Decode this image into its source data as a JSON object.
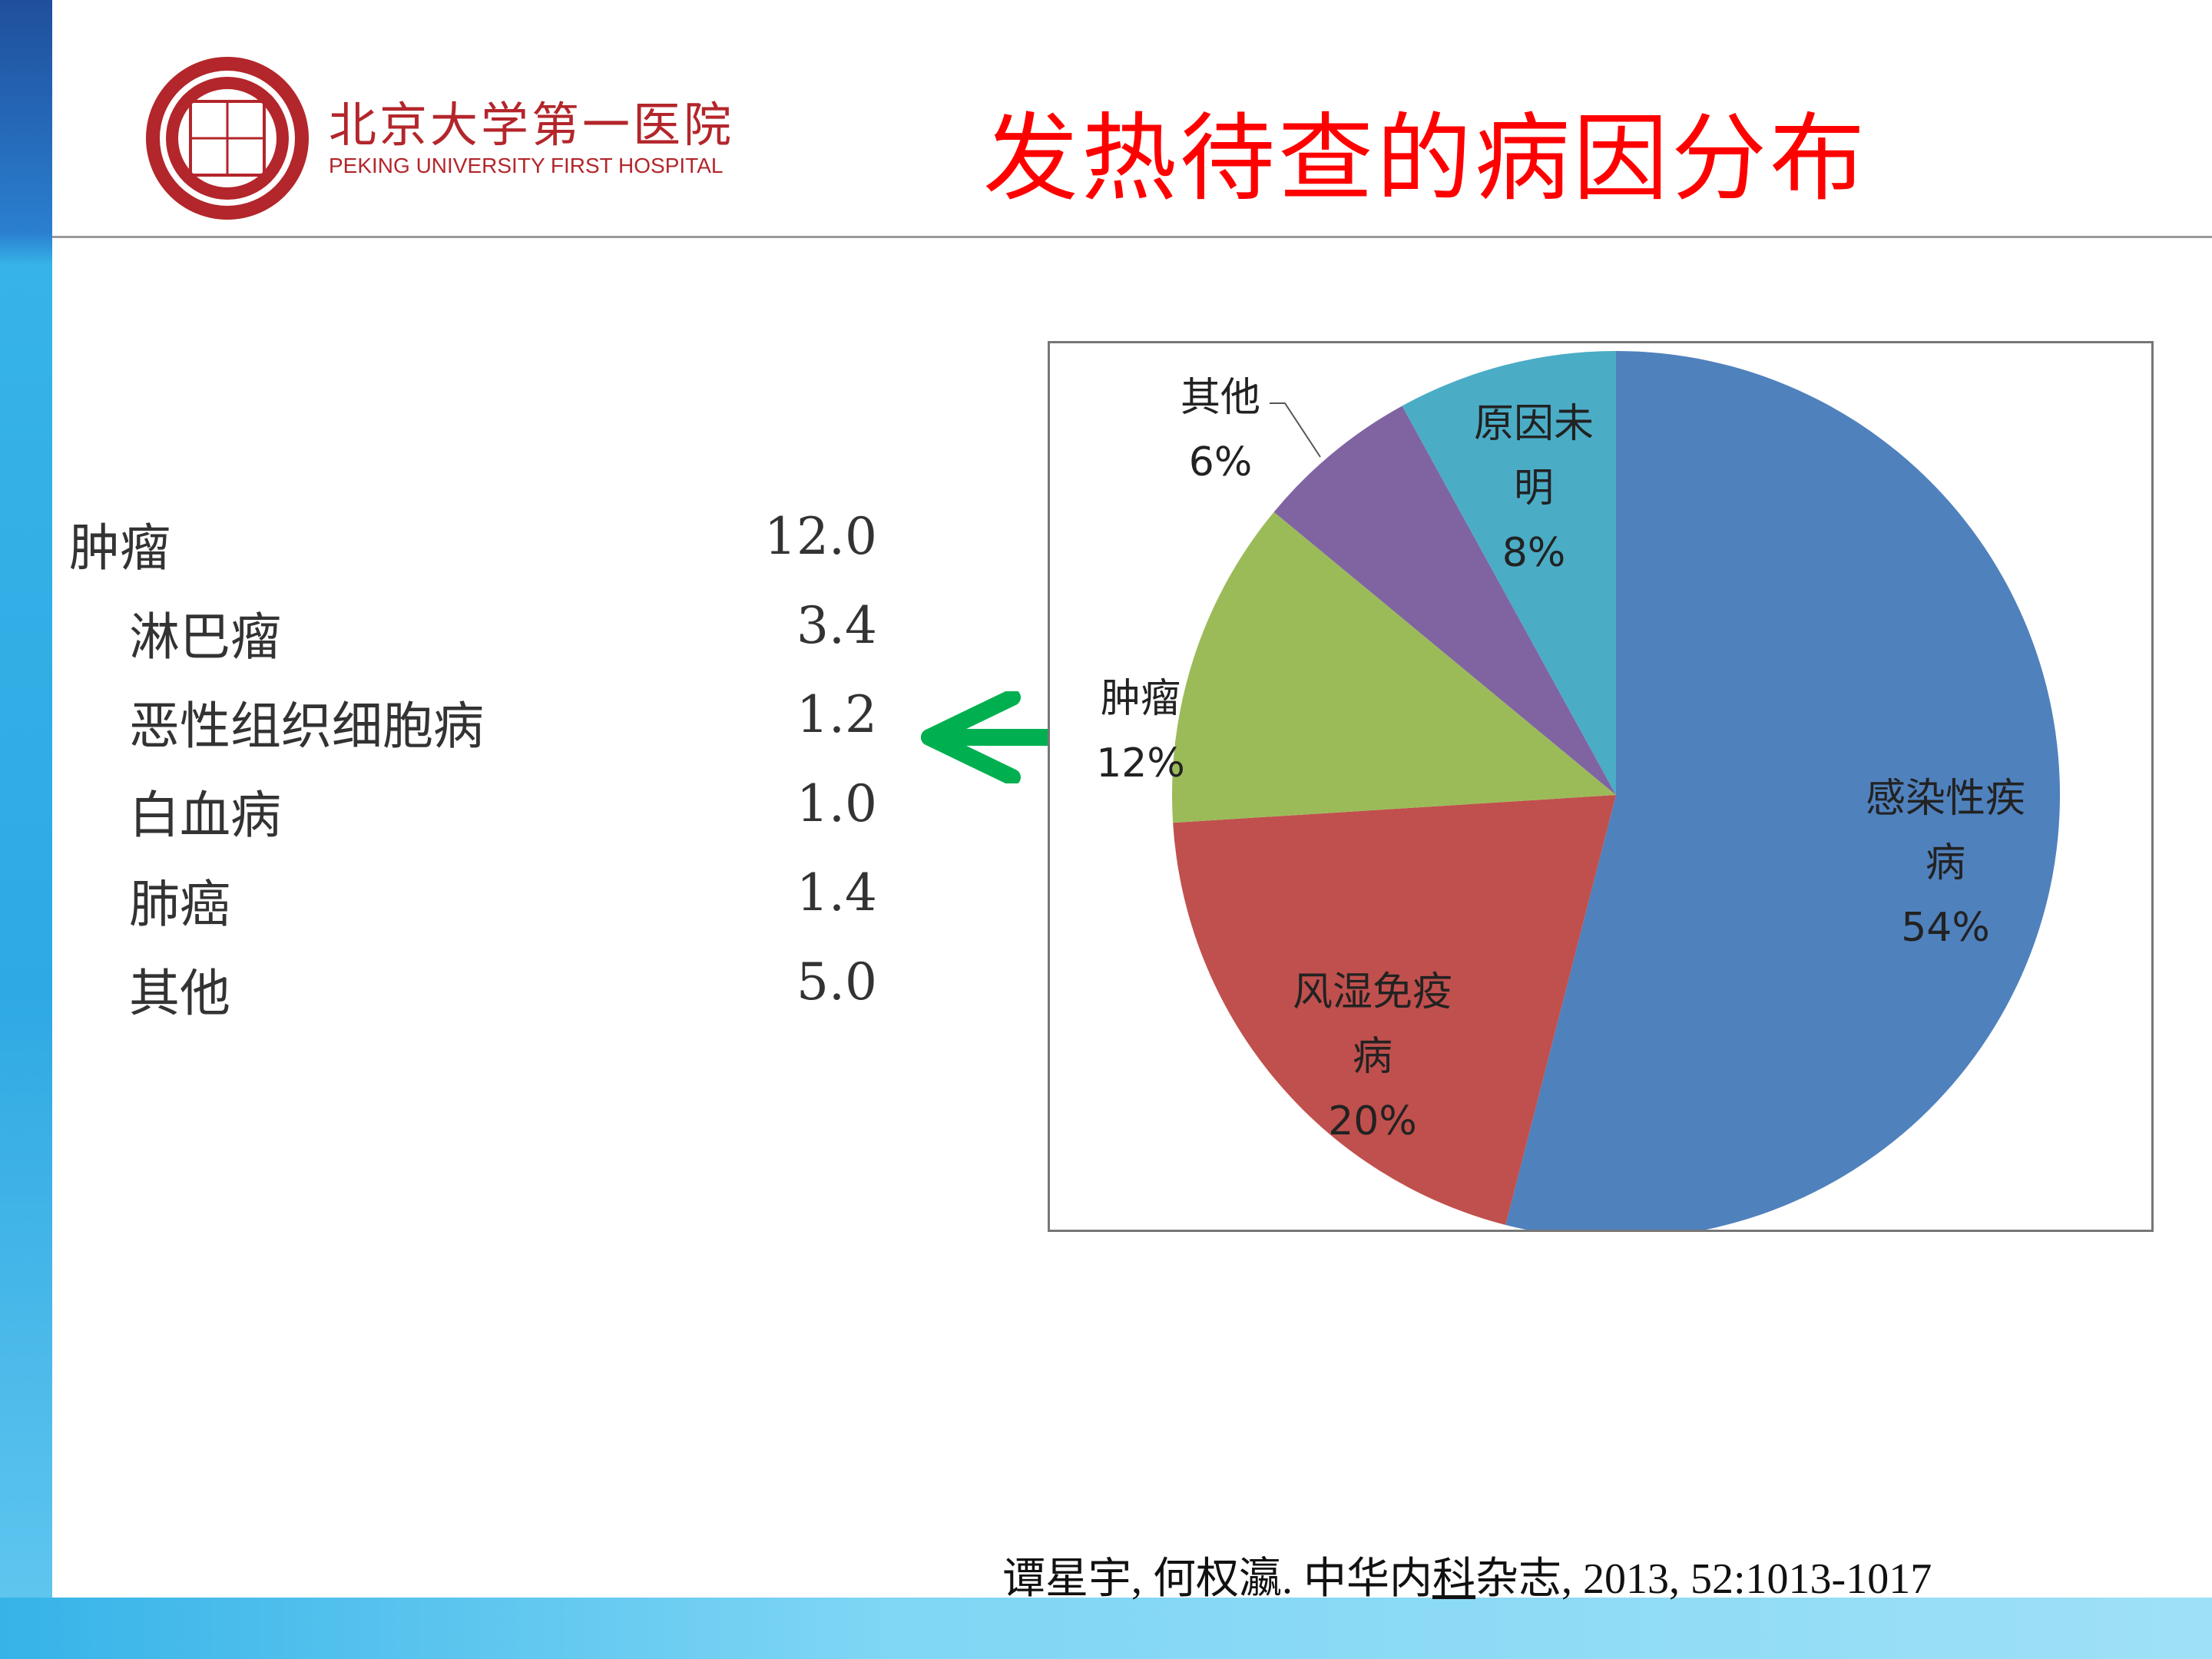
{
  "header": {
    "hospital_cn": "北京大学第一医院",
    "hospital_en": "PEKING UNIVERSITY FIRST HOSPITAL",
    "title": "发热待查的病因分布"
  },
  "table": {
    "rows": [
      {
        "label": "肿瘤",
        "value": "12.0",
        "indent": false
      },
      {
        "label": "淋巴瘤",
        "value": "3.4",
        "indent": true
      },
      {
        "label": "恶性组织细胞病",
        "value": "1.2",
        "indent": true
      },
      {
        "label": "白血病",
        "value": "1.0",
        "indent": true
      },
      {
        "label": "肺癌",
        "value": "1.4",
        "indent": true
      },
      {
        "label": "其他",
        "value": "5.0",
        "indent": true
      }
    ]
  },
  "colors": {
    "title": "#ff0000",
    "arrow": "#00b050"
  },
  "chart_data": {
    "type": "pie",
    "slices": [
      {
        "label": "感染性疾病",
        "label_lines": [
          "感染性疾",
          "病"
        ],
        "value": 54,
        "pct": "54%",
        "color": "#4f81bd"
      },
      {
        "label": "风湿免疫病",
        "label_lines": [
          "风湿免疫",
          "病"
        ],
        "value": 20,
        "pct": "20%",
        "color": "#c0504d"
      },
      {
        "label": "肿瘤",
        "label_lines": [
          "肿瘤"
        ],
        "value": 12,
        "pct": "12%",
        "color": "#9bbb59"
      },
      {
        "label": "其他",
        "label_lines": [
          "其他"
        ],
        "value": 6,
        "pct": "6%",
        "color": "#8064a2"
      },
      {
        "label": "原因未明",
        "label_lines": [
          "原因未",
          "明"
        ],
        "value": 8,
        "pct": "8%",
        "color": "#4bacc6"
      }
    ]
  },
  "citation": {
    "before": "谭星宇, 何权瀛. 中华内",
    "underlined": "科",
    "after": "杂志, 2013, 52:1013-1017"
  }
}
